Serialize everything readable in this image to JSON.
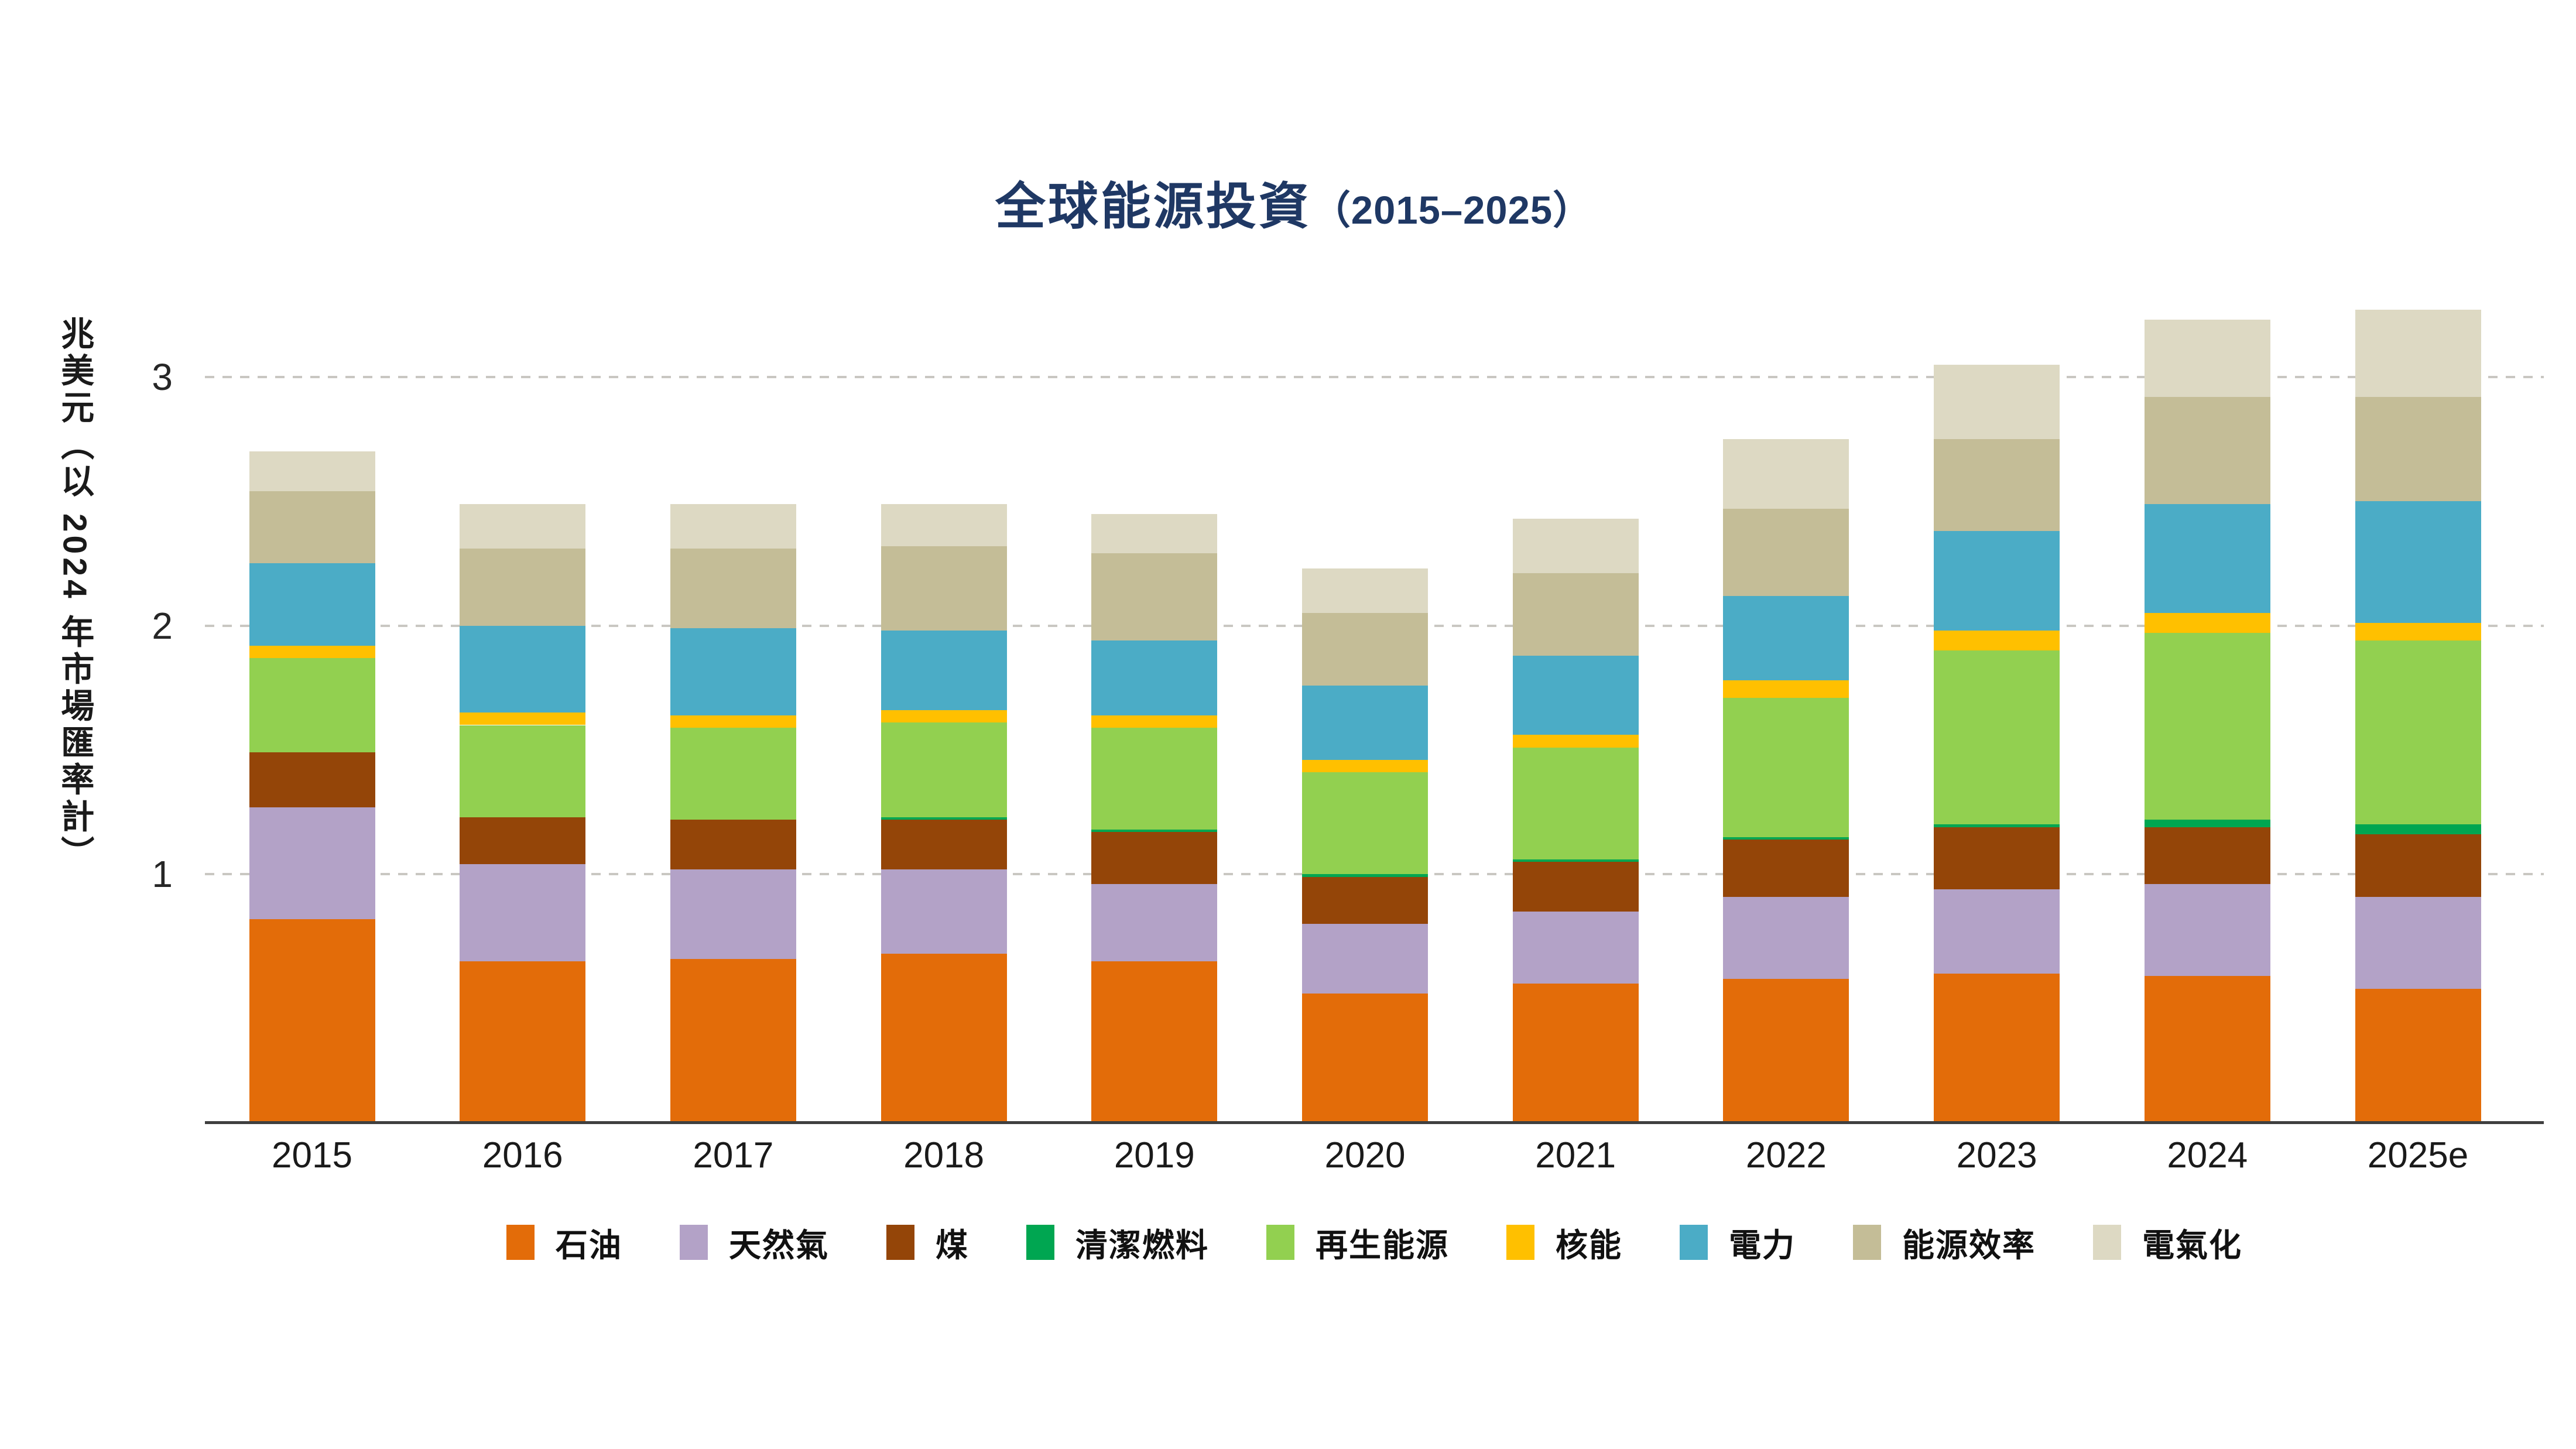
{
  "title": {
    "main": "全球能源投資",
    "paren": "（2015–2025）"
  },
  "y_axis": {
    "label": "兆美元（以 2024 年市場匯率計）",
    "ticks": [
      {
        "label": "3",
        "value": 3
      },
      {
        "label": "2",
        "value": 2
      },
      {
        "label": "1",
        "value": 1
      }
    ]
  },
  "colors": {
    "title": "#1F3864",
    "axis_line": "#3f3f3f",
    "gridline": "#c9c7c2"
  },
  "chart_data": {
    "type": "bar",
    "stacked": true,
    "title": "全球能源投資（2015–2025）",
    "ylabel": "兆美元（以 2024 年市場匯率計）",
    "xlabel": "",
    "ylim": [
      0,
      3.34
    ],
    "gridlines": [
      1,
      2,
      3
    ],
    "grid": "dashed-horizontal",
    "legend_position": "bottom",
    "categories": [
      "2015",
      "2016",
      "2017",
      "2018",
      "2019",
      "2020",
      "2021",
      "2022",
      "2023",
      "2024",
      "2025e"
    ],
    "series": [
      {
        "name": "石油",
        "color": "#E36C09",
        "values": [
          0.82,
          0.65,
          0.66,
          0.68,
          0.65,
          0.52,
          0.56,
          0.58,
          0.6,
          0.59,
          0.54
        ]
      },
      {
        "name": "天然氣",
        "color": "#B3A2C7",
        "values": [
          0.45,
          0.39,
          0.36,
          0.34,
          0.31,
          0.28,
          0.29,
          0.33,
          0.34,
          0.37,
          0.37
        ]
      },
      {
        "name": "煤",
        "color": "#944508",
        "values": [
          0.22,
          0.19,
          0.2,
          0.2,
          0.21,
          0.19,
          0.2,
          0.23,
          0.25,
          0.23,
          0.25
        ]
      },
      {
        "name": "清潔燃料",
        "color": "#00A651",
        "values": [
          0.0,
          0.0,
          0.0,
          0.01,
          0.01,
          0.01,
          0.01,
          0.01,
          0.01,
          0.03,
          0.04
        ]
      },
      {
        "name": "再生能源",
        "color": "#92D050",
        "values": [
          0.38,
          0.37,
          0.37,
          0.38,
          0.41,
          0.41,
          0.45,
          0.56,
          0.7,
          0.75,
          0.74
        ]
      },
      {
        "name": "核能",
        "color": "#FFC000",
        "values": [
          0.05,
          0.05,
          0.05,
          0.05,
          0.05,
          0.05,
          0.05,
          0.07,
          0.08,
          0.08,
          0.07
        ]
      },
      {
        "name": "電力",
        "color": "#4BACC6",
        "values": [
          0.33,
          0.35,
          0.35,
          0.32,
          0.3,
          0.3,
          0.32,
          0.34,
          0.4,
          0.44,
          0.49
        ]
      },
      {
        "name": "能源效率",
        "color": "#C4BD97",
        "values": [
          0.29,
          0.31,
          0.32,
          0.34,
          0.35,
          0.29,
          0.33,
          0.35,
          0.37,
          0.43,
          0.42
        ]
      },
      {
        "name": "電氣化",
        "color": "#DDD9C3",
        "values": [
          0.16,
          0.18,
          0.18,
          0.17,
          0.16,
          0.18,
          0.22,
          0.28,
          0.3,
          0.31,
          0.35
        ]
      }
    ]
  }
}
